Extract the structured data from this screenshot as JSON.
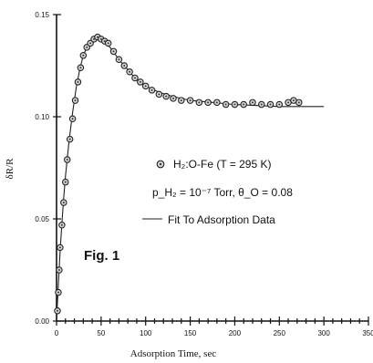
{
  "chart_data": {
    "type": "scatter",
    "title": "",
    "figure_label": "Fig. 1",
    "xlabel": "Adsorption Time, sec",
    "ylabel": "δR/R",
    "xlim": [
      0,
      350
    ],
    "ylim": [
      0,
      0.15
    ],
    "x_ticks": [
      0,
      50,
      100,
      150,
      200,
      250,
      300,
      350
    ],
    "x_tick_labels": [
      "0",
      "50",
      "100",
      "150",
      "200",
      "250",
      "300",
      "350"
    ],
    "y_ticks": [
      0,
      0.05,
      0.1,
      0.15
    ],
    "y_tick_labels": [
      "0.00",
      "0.05",
      "0.10",
      "0.15"
    ],
    "x_minor_step": 10,
    "grid": false,
    "legend": {
      "placement": "center-right",
      "entries": [
        {
          "kind": "marker",
          "text": "H₂:O-Fe (T = 295 K)"
        },
        {
          "kind": "none",
          "text": "p_H₂ = 10⁻⁷ Torr, θ_O = 0.08"
        },
        {
          "kind": "line",
          "text": "Fit To Adsorption Data"
        }
      ]
    },
    "series": [
      {
        "kind": "markers",
        "points": [
          [
            1,
            0.005
          ],
          [
            2,
            0.014
          ],
          [
            3,
            0.025
          ],
          [
            4,
            0.036
          ],
          [
            6,
            0.047
          ],
          [
            8,
            0.058
          ],
          [
            10,
            0.068
          ],
          [
            12,
            0.079
          ],
          [
            15,
            0.089
          ],
          [
            18,
            0.099
          ],
          [
            21,
            0.108
          ],
          [
            24,
            0.117
          ],
          [
            27,
            0.124
          ],
          [
            30,
            0.13
          ],
          [
            34,
            0.134
          ],
          [
            38,
            0.136
          ],
          [
            42,
            0.138
          ],
          [
            46,
            0.139
          ],
          [
            50,
            0.138
          ],
          [
            54,
            0.137
          ],
          [
            58,
            0.136
          ],
          [
            64,
            0.132
          ],
          [
            70,
            0.128
          ],
          [
            76,
            0.125
          ],
          [
            82,
            0.122
          ],
          [
            88,
            0.119
          ],
          [
            94,
            0.117
          ],
          [
            100,
            0.115
          ],
          [
            107,
            0.113
          ],
          [
            115,
            0.111
          ],
          [
            123,
            0.11
          ],
          [
            131,
            0.109
          ],
          [
            140,
            0.108
          ],
          [
            150,
            0.108
          ],
          [
            160,
            0.107
          ],
          [
            170,
            0.107
          ],
          [
            180,
            0.107
          ],
          [
            190,
            0.106
          ],
          [
            200,
            0.106
          ],
          [
            210,
            0.106
          ],
          [
            220,
            0.107
          ],
          [
            230,
            0.106
          ],
          [
            240,
            0.106
          ],
          [
            250,
            0.106
          ],
          [
            260,
            0.107
          ],
          [
            266,
            0.108
          ],
          [
            272,
            0.107
          ]
        ]
      },
      {
        "kind": "line",
        "points": [
          [
            0,
            0.0
          ],
          [
            2,
            0.018
          ],
          [
            4,
            0.034
          ],
          [
            6,
            0.048
          ],
          [
            8,
            0.06
          ],
          [
            10,
            0.071
          ],
          [
            14,
            0.088
          ],
          [
            18,
            0.102
          ],
          [
            22,
            0.114
          ],
          [
            26,
            0.123
          ],
          [
            30,
            0.13
          ],
          [
            35,
            0.135
          ],
          [
            40,
            0.138
          ],
          [
            45,
            0.139
          ],
          [
            50,
            0.138
          ],
          [
            55,
            0.136
          ],
          [
            60,
            0.134
          ],
          [
            70,
            0.128
          ],
          [
            80,
            0.123
          ],
          [
            90,
            0.118
          ],
          [
            100,
            0.115
          ],
          [
            115,
            0.112
          ],
          [
            130,
            0.11
          ],
          [
            150,
            0.108
          ],
          [
            175,
            0.107
          ],
          [
            200,
            0.106
          ],
          [
            250,
            0.105
          ],
          [
            300,
            0.105
          ]
        ]
      }
    ]
  }
}
